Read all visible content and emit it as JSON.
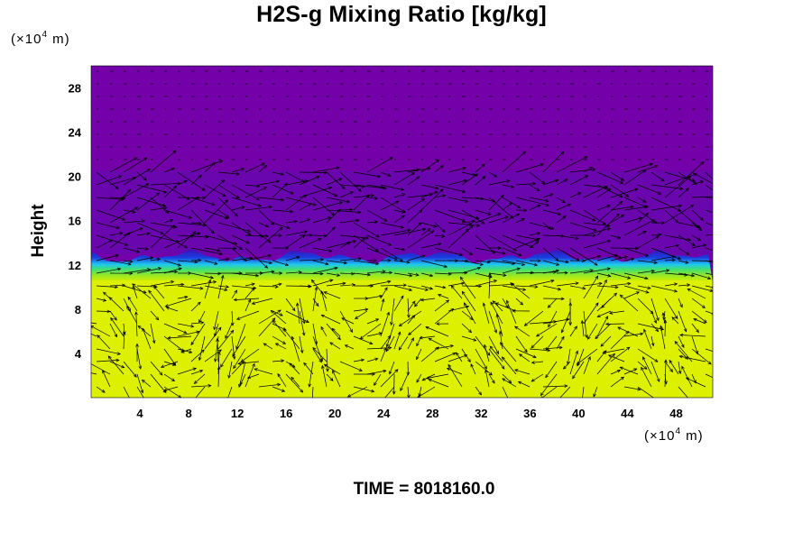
{
  "title_prefix": "H2S-g Mixing Ratio [kg/kg]",
  "y_unit": {
    "prefix": "(×10",
    "exp": "4",
    "suffix": " m)"
  },
  "x_unit": {
    "prefix": "(×10",
    "exp": "4",
    "suffix": " m)"
  },
  "time_label": "TIME = 8018160.0",
  "colors": {
    "background_field": "#7300a8",
    "upper_field": "#6a06ad",
    "interface_blue": "#1a3fe0",
    "interface_cyan": "#1ee0e8",
    "interface_green": "#44e03c",
    "lower_field": "#dcf000",
    "arrows": "#000000"
  },
  "chart_data": {
    "type": "heatmap",
    "title": "H2S-g Mixing Ratio [kg/kg]",
    "xlabel": "",
    "ylabel": "Height",
    "x_unit": "(×10^4 m)",
    "y_unit": "(×10^4 m)",
    "xlim": [
      0,
      51
    ],
    "ylim": [
      0,
      30
    ],
    "x_ticks": [
      4,
      8,
      12,
      16,
      20,
      24,
      28,
      32,
      36,
      40,
      44,
      48
    ],
    "y_ticks": [
      4,
      8,
      12,
      16,
      20,
      24,
      28
    ],
    "field_regions": [
      {
        "name": "upper",
        "y_from": 13,
        "y_to": 30,
        "level": "low",
        "color": "#7300a8"
      },
      {
        "name": "interface",
        "y_from": 11,
        "y_to": 13,
        "level": "transition",
        "color": "#1a3fe0"
      },
      {
        "name": "lower",
        "y_from": 0,
        "y_to": 11,
        "level": "high",
        "color": "#dcf000"
      }
    ],
    "interface_height": 12.3,
    "overlay": "wind vectors",
    "grid": false
  }
}
